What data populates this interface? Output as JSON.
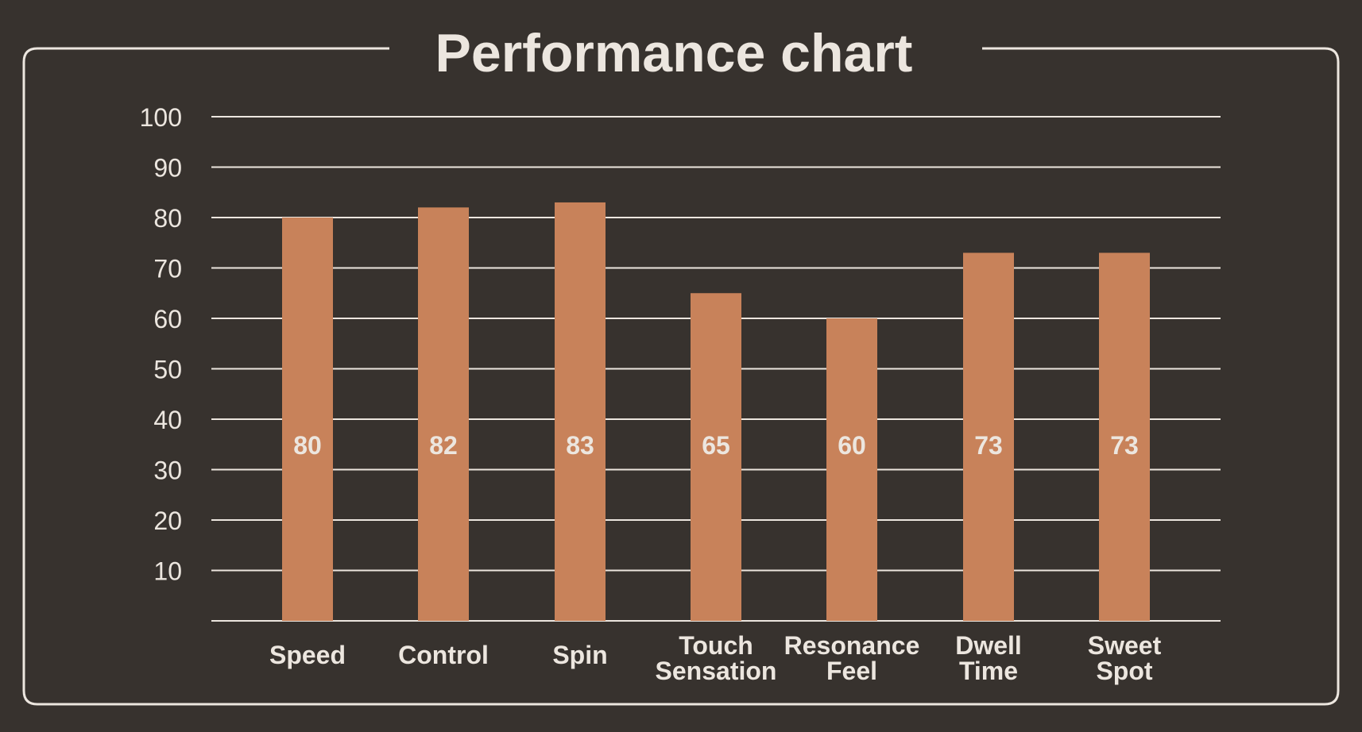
{
  "chart_data": {
    "type": "bar",
    "title": "Performance chart",
    "categories": [
      [
        "Speed"
      ],
      [
        "Control"
      ],
      [
        "Spin"
      ],
      [
        "Touch",
        "Sensation"
      ],
      [
        "Resonance",
        "Feel"
      ],
      [
        "Dwell",
        "Time"
      ],
      [
        "Sweet",
        "Spot"
      ]
    ],
    "values": [
      80,
      82,
      83,
      65,
      60,
      73,
      73
    ],
    "value_labels": [
      "80",
      "82",
      "83",
      "65",
      "60",
      "73",
      "73"
    ],
    "y_ticks": [
      "10",
      "20",
      "30",
      "40",
      "50",
      "60",
      "70",
      "80",
      "90",
      "100"
    ],
    "ylim": [
      0,
      100
    ],
    "grid": true,
    "xlabel": "",
    "ylabel": "",
    "colors": {
      "background": "#37322e",
      "bar": "#c8825a",
      "frame": "#ece6df",
      "text": "#ece6df",
      "grid": "#ece6df"
    }
  }
}
